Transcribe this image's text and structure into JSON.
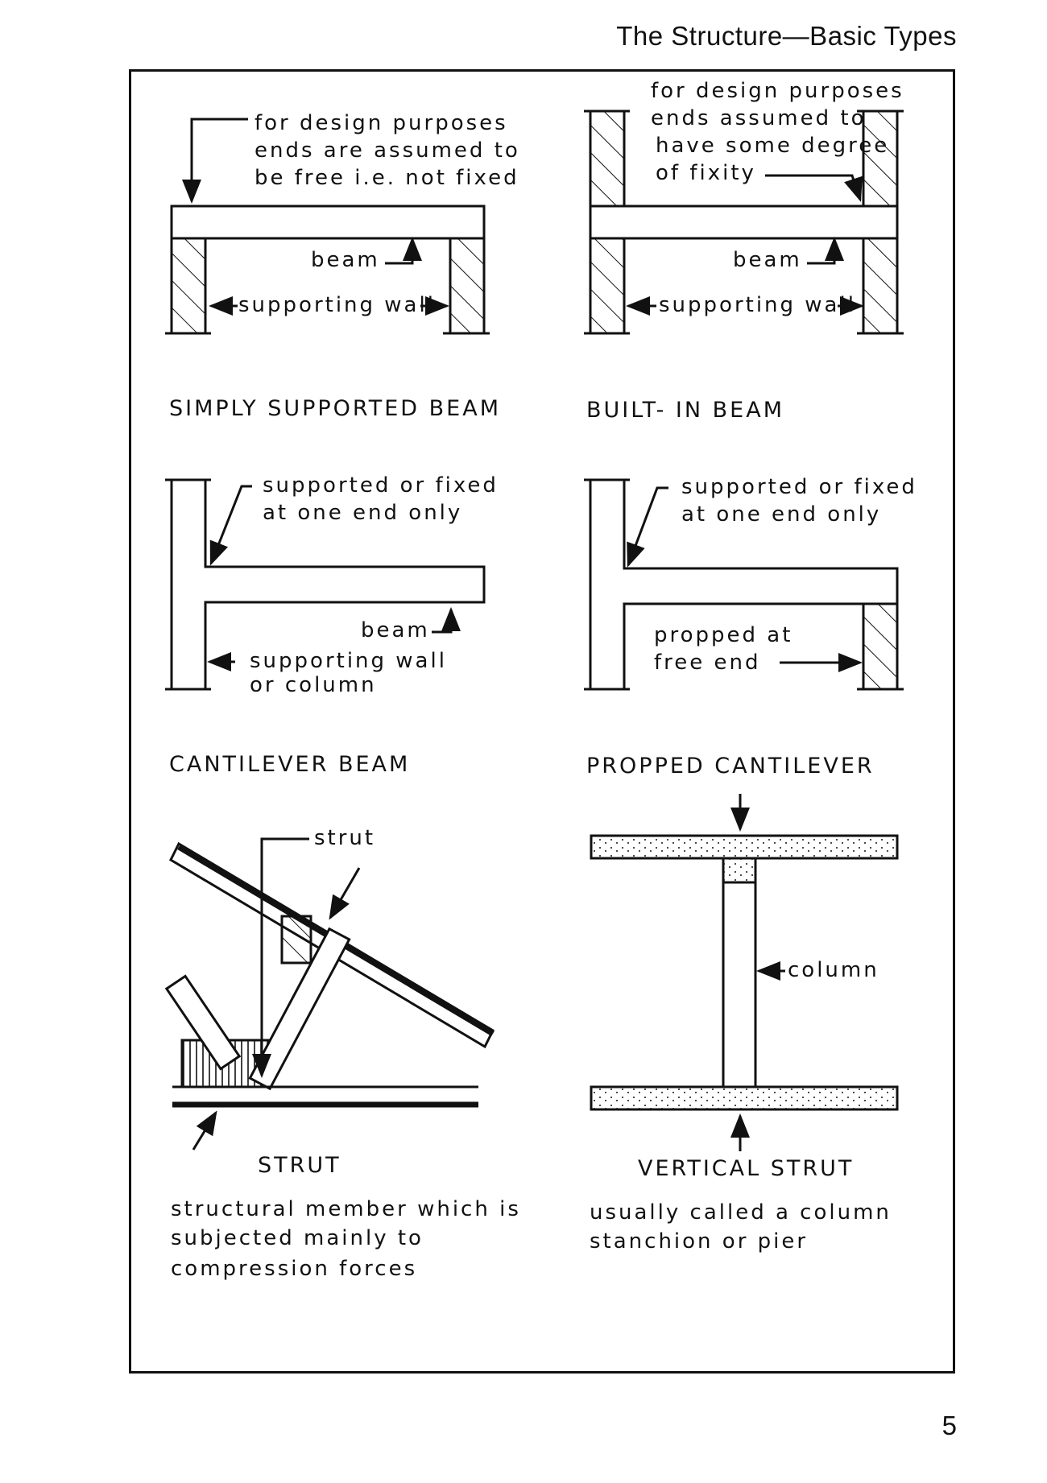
{
  "header": {
    "title": "The Structure—Basic Types"
  },
  "page_number": "5",
  "simply_supported": {
    "note": [
      "for design purposes",
      "ends are assumed to",
      "be free i.e. not fixed"
    ],
    "beam_label": "beam",
    "wall_label": "supporting wall",
    "caption": "SIMPLY SUPPORTED BEAM"
  },
  "built_in": {
    "note": [
      "for design purposes",
      "ends assumed to",
      "have some degree",
      "of fixity"
    ],
    "beam_label": "beam",
    "wall_label": "supporting wall",
    "caption": "BUILT- IN  BEAM"
  },
  "cantilever": {
    "note": [
      "supported or fixed",
      "at one end only"
    ],
    "beam_label": "beam",
    "wall_label": [
      "supporting  wall",
      "or column"
    ],
    "caption": "CANTILEVER  BEAM"
  },
  "propped": {
    "note": [
      "supported or fixed",
      "at one end only"
    ],
    "prop_label": [
      "propped at",
      "free end"
    ],
    "caption": "PROPPED CANTILEVER"
  },
  "strut": {
    "label": "strut",
    "caption": "STRUT",
    "description": [
      "structural member which is",
      "subjected mainly to",
      "compression forces"
    ]
  },
  "vertical_strut": {
    "label": "column",
    "caption": "VERTICAL STRUT",
    "description": [
      "usually called a column",
      "stanchion or pier"
    ]
  }
}
